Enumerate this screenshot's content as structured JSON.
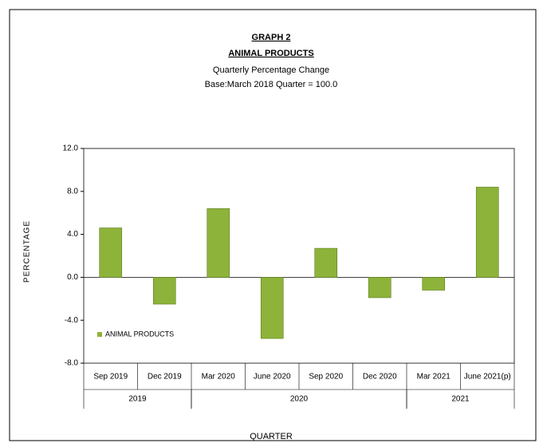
{
  "chart_data": {
    "type": "bar",
    "title": "GRAPH 2",
    "subtitle": "ANIMAL PRODUCTS",
    "subtitle2": "Quarterly Percentage Change",
    "subtitle3": "Base:March 2018 Quarter = 100.0",
    "y_label": "PERCENTAGE",
    "x_label": "QUARTER",
    "categories": [
      "Sep 2019",
      "Dec 2019",
      "Mar 2020",
      "June 2020",
      "Sep 2020",
      "Dec 2020",
      "Mar 2021",
      "June 2021(p)"
    ],
    "groups": [
      {
        "label": "2019",
        "count": 2
      },
      {
        "label": "2020",
        "count": 4
      },
      {
        "label": "2021",
        "count": 2
      }
    ],
    "series": [
      {
        "name": "ANIMAL PRODUCTS",
        "color": "#8db33a",
        "values": [
          4.6,
          -2.5,
          6.4,
          -5.7,
          2.7,
          -1.9,
          -1.2,
          8.4
        ]
      }
    ],
    "ylim": [
      -8,
      12
    ],
    "yticks": [
      {
        "value": -8,
        "label": "-8.0"
      },
      {
        "value": -4,
        "label": "-4.0"
      },
      {
        "value": 0,
        "label": "0.0"
      },
      {
        "value": 4,
        "label": "4.0"
      },
      {
        "value": 8,
        "label": "8.0"
      },
      {
        "value": 12,
        "label": "12.0"
      }
    ],
    "legend": "lower left"
  }
}
